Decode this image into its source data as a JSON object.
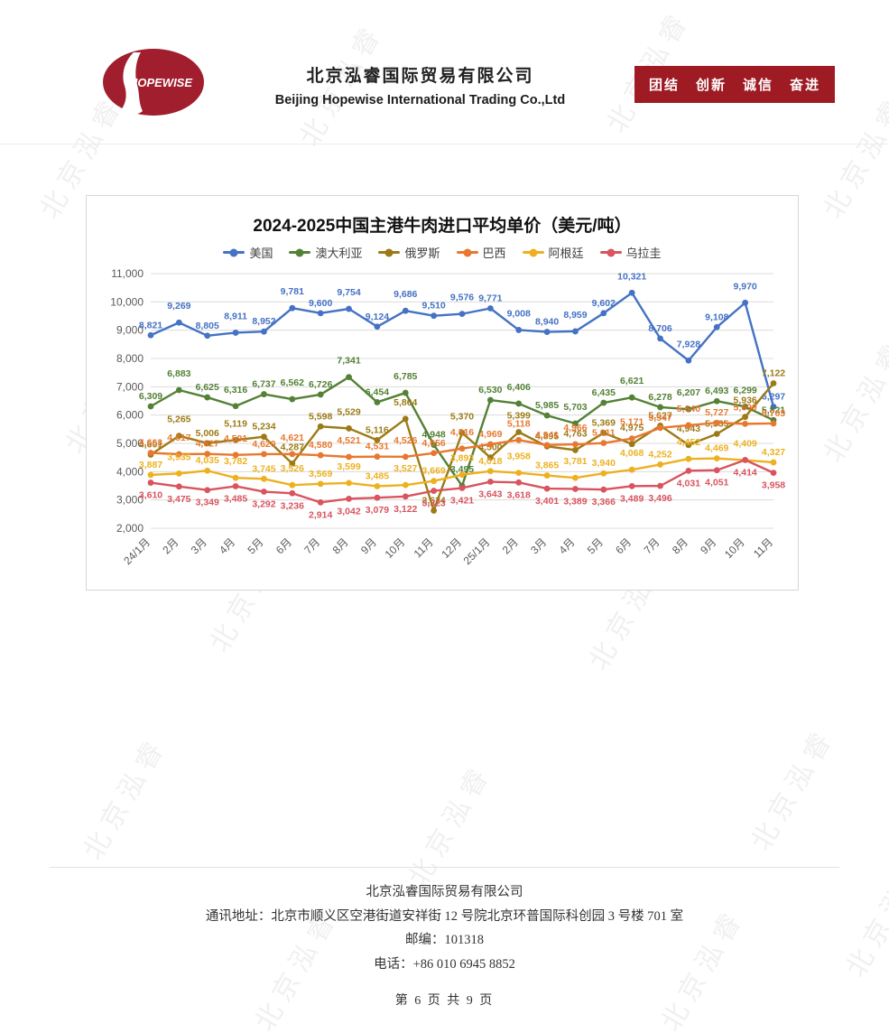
{
  "header": {
    "logo_text": "HOPEWISE",
    "company_cn": "北京泓睿国际贸易有限公司",
    "company_en": "Beijing Hopewise International Trading Co.,Ltd",
    "slogan": [
      "团结",
      "创新",
      "诚信",
      "奋进"
    ]
  },
  "watermark": {
    "text": "北京泓睿"
  },
  "chart_data": {
    "type": "line",
    "title": "2024-2025中国主港牛肉进口平均单价（美元/吨）",
    "categories": [
      "24/1月",
      "2月",
      "3月",
      "4月",
      "5月",
      "6月",
      "7月",
      "8月",
      "9月",
      "10月",
      "11月",
      "12月",
      "25/1月",
      "2月",
      "3月",
      "4月",
      "5月",
      "6月",
      "7月",
      "8月",
      "9月",
      "10月",
      "11月"
    ],
    "series": [
      {
        "name": "美国",
        "color": "#4472C4",
        "values": [
          8821,
          9269,
          8805,
          8911,
          8952,
          9781,
          9600,
          9754,
          9124,
          9686,
          9510,
          9576,
          9771,
          9008,
          8940,
          8959,
          9602,
          10321,
          8706,
          7928,
          9108,
          9970,
          6297
        ]
      },
      {
        "name": "澳大利亚",
        "color": "#538135",
        "values": [
          6309,
          6883,
          6625,
          6316,
          6737,
          6562,
          6726,
          7341,
          6454,
          6785,
          4948,
          3495,
          6530,
          6406,
          5985,
          5703,
          6435,
          6621,
          6278,
          6207,
          6493,
          6299,
          5821
        ]
      },
      {
        "name": "俄罗斯",
        "color": "#9C7B16",
        "values": [
          4601,
          5265,
          5006,
          5119,
          5234,
          4287,
          5598,
          5529,
          5116,
          5864,
          2624,
          5370,
          4500,
          5399,
          4895,
          4763,
          5369,
          4975,
          5627,
          4943,
          5335,
          5936,
          7122
        ]
      },
      {
        "name": "巴西",
        "color": "#E8782F",
        "values": [
          4663,
          4617,
          4627,
          4591,
          4620,
          4621,
          4580,
          4521,
          4531,
          4526,
          4656,
          4816,
          4969,
          5118,
          4941,
          4966,
          5011,
          5171,
          5547,
          5640,
          5727,
          5690,
          5703
        ]
      },
      {
        "name": "阿根廷",
        "color": "#EDB120",
        "values": [
          3887,
          3935,
          4035,
          3782,
          3745,
          3526,
          3569,
          3599,
          3485,
          3527,
          3669,
          3893,
          4018,
          3958,
          3865,
          3781,
          3940,
          4068,
          4252,
          4452,
          4469,
          4409,
          4327
        ]
      },
      {
        "name": "乌拉圭",
        "color": "#D9545E",
        "labels_below": true,
        "values": [
          3610,
          3475,
          3349,
          3485,
          3292,
          3236,
          2914,
          3042,
          3079,
          3122,
          3323,
          3421,
          3643,
          3618,
          3401,
          3389,
          3366,
          3489,
          3496,
          4031,
          4051,
          4414,
          3958
        ]
      }
    ],
    "ylim": [
      2000,
      11000
    ],
    "ytick_step": 1000,
    "grid": true,
    "legend_position": "top",
    "xlabel": "",
    "ylabel": ""
  },
  "footer": {
    "company": "北京泓睿国际贸易有限公司",
    "address": "通讯地址：北京市顺义区空港街道安祥街 12 号院北京环普国际科创园 3 号楼 701 室",
    "postcode": "邮编：101318",
    "phone": "电话：+86 010 6945 8852",
    "page": "第 6 页 共 9 页"
  }
}
